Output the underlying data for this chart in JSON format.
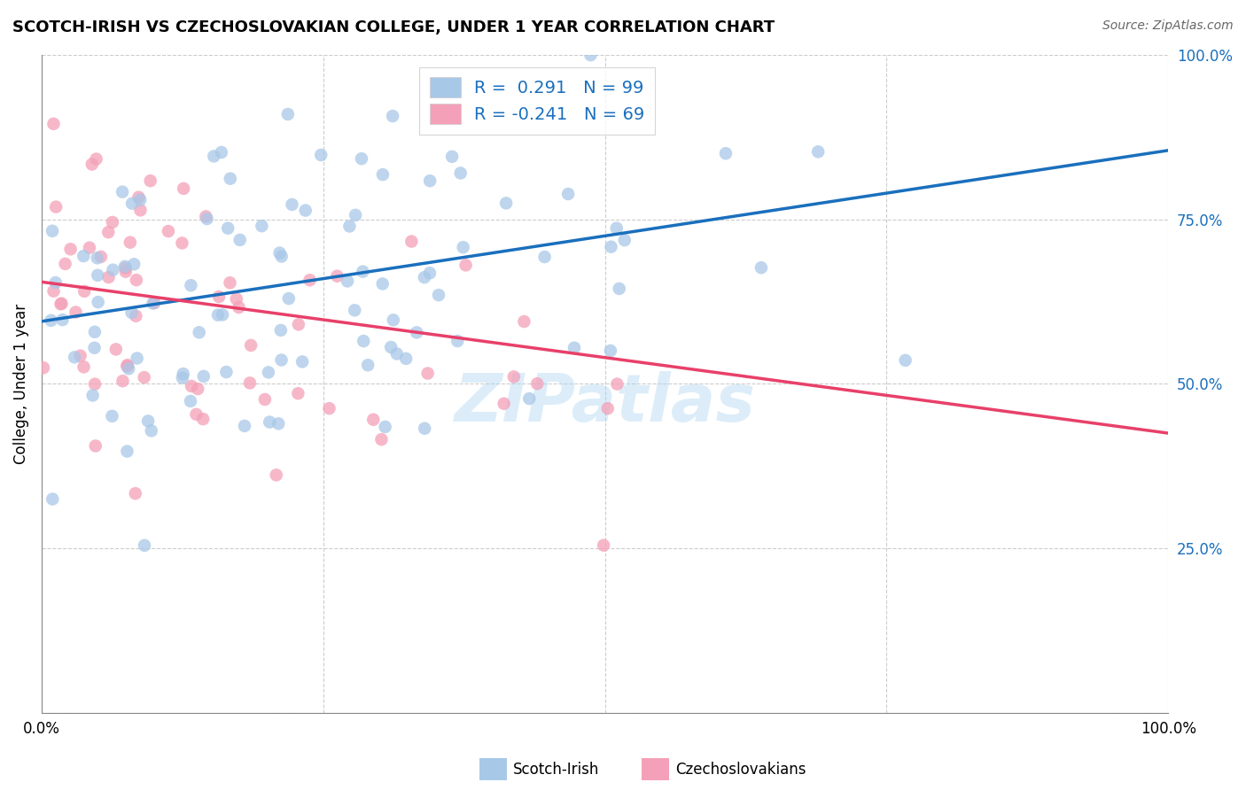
{
  "title": "SCOTCH-IRISH VS CZECHOSLOVAKIAN COLLEGE, UNDER 1 YEAR CORRELATION CHART",
  "source": "Source: ZipAtlas.com",
  "ylabel": "College, Under 1 year",
  "legend_labels": [
    "Scotch-Irish",
    "Czechoslovakians"
  ],
  "blue_R": 0.291,
  "blue_N": 99,
  "pink_R": -0.241,
  "pink_N": 69,
  "blue_color": "#a8c8e8",
  "pink_color": "#f4a0b8",
  "blue_line_color": "#1a6fbd",
  "pink_line_color": "#e8406a",
  "watermark": "ZIPatlas",
  "xmin": 0.0,
  "xmax": 1.0,
  "ymin": 0.0,
  "ymax": 1.0,
  "ytick_color": "#1a6fbd",
  "grid_color": "#cccccc",
  "background_color": "#ffffff",
  "blue_line_start_y": 0.595,
  "blue_line_end_y": 0.855,
  "pink_line_start_y": 0.655,
  "pink_line_end_y": 0.425
}
